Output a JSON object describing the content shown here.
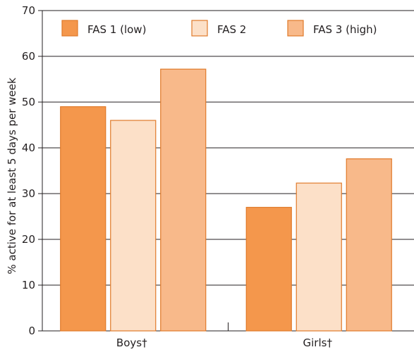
{
  "chart_data": {
    "type": "bar",
    "categories": [
      "Boys†",
      "Girls†"
    ],
    "series": [
      {
        "name": "FAS 1 (low)",
        "values": [
          49,
          27
        ],
        "color": "#f4974c",
        "stroke": "#e07a2a"
      },
      {
        "name": "FAS 2",
        "values": [
          46,
          32.3
        ],
        "color": "#fce0c8",
        "stroke": "#e07a2a"
      },
      {
        "name": "FAS 3 (high)",
        "values": [
          57.2,
          37.6
        ],
        "color": "#f8b98a",
        "stroke": "#e07a2a"
      }
    ],
    "title": "",
    "xlabel": "",
    "ylabel": "% active for at least 5 days per week",
    "ylim": [
      0,
      70
    ],
    "yticks": [
      0,
      10,
      20,
      30,
      40,
      50,
      60,
      70
    ],
    "grid": true,
    "legend_position": "top"
  }
}
